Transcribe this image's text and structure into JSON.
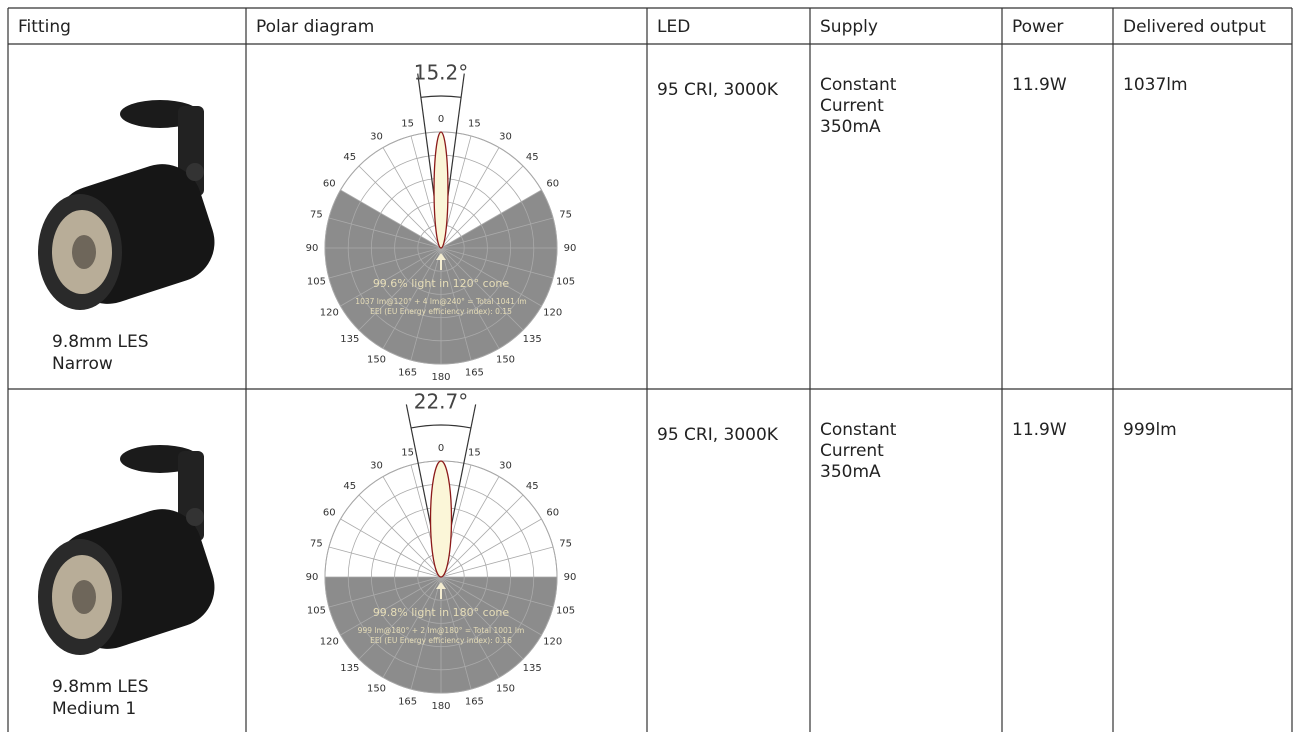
{
  "header": [
    "Fitting",
    "Polar diagram",
    "LED",
    "Supply",
    "Power",
    "Delivered output"
  ],
  "rows": [
    {
      "fitting": [
        "9.8mm LES",
        "Narrow"
      ],
      "polar": {
        "beam_angle": "15.2°",
        "angle_labels": [
          "0",
          "15",
          "30",
          "45",
          "60",
          "75",
          "90",
          "105",
          "120",
          "135",
          "150",
          "165",
          "180"
        ],
        "cone_text": "99.6% light in 120° cone",
        "lumen_text": "1037 lm@120° + 4 lm@240° = Total 1041 lm",
        "eei_text": "EEI (EU Energy efficiency index): 0.15"
      },
      "led": "95 CRI, 3000K",
      "supply": [
        "Constant",
        "Current",
        "350mA"
      ],
      "power": "11.9W",
      "output": "1037lm"
    },
    {
      "fitting": [
        "9.8mm LES",
        "Medium 1"
      ],
      "polar": {
        "beam_angle": "22.7°",
        "angle_labels": [
          "0",
          "15",
          "30",
          "45",
          "60",
          "75",
          "90",
          "105",
          "120",
          "135",
          "150",
          "165",
          "180"
        ],
        "cone_text": "99.8% light in 180° cone",
        "lumen_text": "999 lm@180° + 2 lm@180° = Total 1001 lm",
        "eei_text": "EEI (EU Energy efficiency index): 0.16"
      },
      "led": "95 CRI, 3000K",
      "supply": [
        "Constant",
        "Current",
        "350mA"
      ],
      "power": "11.9W",
      "output": "999lm"
    }
  ]
}
